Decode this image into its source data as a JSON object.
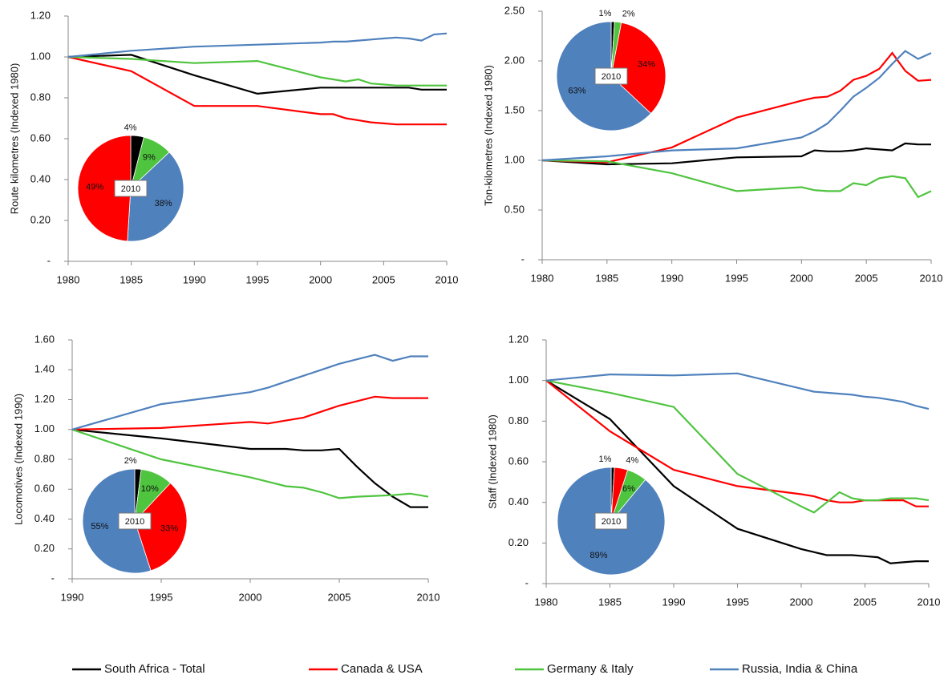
{
  "legend": {
    "names": [
      "South Africa - Total",
      "Canada & USA",
      "Germany & Italy",
      "Russia, India & China"
    ],
    "colors": [
      "#000000",
      "#ff0000",
      "#4fc43f",
      "#4f81bd"
    ]
  },
  "chart_data": [
    {
      "type": "line",
      "y_label": "Route kilometres (Indexed 1980)",
      "x": [
        1980,
        1985,
        1990,
        1995,
        2000,
        2001,
        2002,
        2003,
        2004,
        2005,
        2006,
        2007,
        2008,
        2009,
        2010
      ],
      "xlim": [
        1980,
        2010
      ],
      "xticks": [
        1980,
        1985,
        1990,
        1995,
        2000,
        2005,
        2010
      ],
      "ylim": [
        0,
        1.2
      ],
      "yticks": [
        {
          "value": 0,
          "label": "-"
        },
        {
          "value": 0.2,
          "label": "0.20"
        },
        {
          "value": 0.4,
          "label": "0.40"
        },
        {
          "value": 0.6,
          "label": "0.60"
        },
        {
          "value": 0.8,
          "label": "0.80"
        },
        {
          "value": 1,
          "label": "1.00"
        },
        {
          "value": 1.2,
          "label": "1.20"
        }
      ],
      "series": [
        {
          "values": [
            1.0,
            1.01,
            0.91,
            0.82,
            0.85,
            0.85,
            0.85,
            0.85,
            0.85,
            0.85,
            0.85,
            0.85,
            0.84,
            0.84,
            0.84
          ]
        },
        {
          "values": [
            1.0,
            0.93,
            0.76,
            0.76,
            0.72,
            0.72,
            0.7,
            0.69,
            0.68,
            0.675,
            0.67,
            0.67,
            0.67,
            0.67,
            0.67
          ]
        },
        {
          "values": [
            1.0,
            0.99,
            0.97,
            0.98,
            0.9,
            0.89,
            0.88,
            0.89,
            0.87,
            0.865,
            0.86,
            0.86,
            0.86,
            0.86,
            0.86
          ]
        },
        {
          "values": [
            1.0,
            1.03,
            1.05,
            1.06,
            1.07,
            1.075,
            1.075,
            1.08,
            1.085,
            1.09,
            1.095,
            1.09,
            1.08,
            1.11,
            1.115
          ]
        }
      ],
      "inset_pie": {
        "label": "2010",
        "values": [
          4,
          9,
          38,
          49
        ],
        "value_labels": [
          "4%",
          "9%",
          "38%",
          "49%"
        ],
        "colors": [
          "#000000",
          "#4fc43f",
          "#4f81bd",
          "#ff0000"
        ]
      }
    },
    {
      "type": "line",
      "y_label": "Ton-kilometres (Indexed 1980)",
      "x": [
        1980,
        1985,
        1990,
        1995,
        2000,
        2001,
        2002,
        2003,
        2004,
        2005,
        2006,
        2007,
        2008,
        2009,
        2010
      ],
      "xlim": [
        1980,
        2010
      ],
      "xticks": [
        1980,
        1985,
        1990,
        1995,
        2000,
        2005,
        2010
      ],
      "ylim": [
        0,
        2.5
      ],
      "yticks": [
        {
          "value": 0,
          "label": "-"
        },
        {
          "value": 0.5,
          "label": "0.50"
        },
        {
          "value": 1,
          "label": "1.00"
        },
        {
          "value": 1.5,
          "label": "1.50"
        },
        {
          "value": 2,
          "label": "2.00"
        },
        {
          "value": 2.5,
          "label": "2.50"
        }
      ],
      "series": [
        {
          "values": [
            1.0,
            0.96,
            0.97,
            1.03,
            1.04,
            1.1,
            1.09,
            1.09,
            1.1,
            1.12,
            1.11,
            1.1,
            1.17,
            1.16,
            1.16
          ]
        },
        {
          "values": [
            1.0,
            0.98,
            1.13,
            1.43,
            1.6,
            1.63,
            1.64,
            1.7,
            1.81,
            1.85,
            1.92,
            2.08,
            1.9,
            1.8,
            1.81
          ]
        },
        {
          "values": [
            1.0,
            0.99,
            0.87,
            0.69,
            0.73,
            0.7,
            0.69,
            0.69,
            0.77,
            0.75,
            0.82,
            0.84,
            0.82,
            0.63,
            0.69
          ]
        },
        {
          "values": [
            1.0,
            1.04,
            1.1,
            1.12,
            1.23,
            1.29,
            1.37,
            1.5,
            1.64,
            1.73,
            1.83,
            1.97,
            2.1,
            2.02,
            2.08
          ]
        }
      ],
      "inset_pie": {
        "label": "2010",
        "values": [
          1,
          2,
          34,
          63
        ],
        "value_labels": [
          "1%",
          "2%",
          "34%",
          "63%"
        ],
        "colors": [
          "#000000",
          "#4fc43f",
          "#ff0000",
          "#4f81bd"
        ]
      }
    },
    {
      "type": "line",
      "y_label": "Locomotives (Indexed 1990)",
      "x": [
        1990,
        1995,
        2000,
        2001,
        2002,
        2003,
        2004,
        2005,
        2006,
        2007,
        2008,
        2009,
        2010
      ],
      "xlim": [
        1990,
        2010
      ],
      "xticks": [
        1990,
        1995,
        2000,
        2005,
        2010
      ],
      "ylim": [
        0,
        1.6
      ],
      "yticks": [
        {
          "value": 0,
          "label": "-"
        },
        {
          "value": 0.2,
          "label": "0.20"
        },
        {
          "value": 0.4,
          "label": "0.40"
        },
        {
          "value": 0.6,
          "label": "0.60"
        },
        {
          "value": 0.8,
          "label": "0.80"
        },
        {
          "value": 1,
          "label": "1.00"
        },
        {
          "value": 1.2,
          "label": "1.20"
        },
        {
          "value": 1.4,
          "label": "1.40"
        },
        {
          "value": 1.6,
          "label": "1.60"
        }
      ],
      "series": [
        {
          "values": [
            1.0,
            0.94,
            0.87,
            0.87,
            0.87,
            0.86,
            0.86,
            0.87,
            0.75,
            0.64,
            0.55,
            0.48,
            0.48
          ]
        },
        {
          "values": [
            1.0,
            1.01,
            1.05,
            1.04,
            1.06,
            1.08,
            1.12,
            1.16,
            1.19,
            1.22,
            1.21,
            1.21,
            1.21
          ]
        },
        {
          "values": [
            1.0,
            0.8,
            0.68,
            0.65,
            0.62,
            0.61,
            0.58,
            0.54,
            0.55,
            0.555,
            0.56,
            0.57,
            0.55
          ]
        },
        {
          "values": [
            1.0,
            1.17,
            1.25,
            1.28,
            1.32,
            1.36,
            1.4,
            1.44,
            1.47,
            1.5,
            1.46,
            1.49,
            1.49
          ]
        }
      ],
      "inset_pie": {
        "label": "2010",
        "values": [
          2,
          10,
          33,
          55
        ],
        "value_labels": [
          "2%",
          "10%",
          "33%",
          "55%"
        ],
        "colors": [
          "#000000",
          "#4fc43f",
          "#ff0000",
          "#4f81bd"
        ]
      }
    },
    {
      "type": "line",
      "y_label": "Staff (Indexed 1980)",
      "x": [
        1980,
        1985,
        1990,
        1995,
        2000,
        2001,
        2002,
        2003,
        2004,
        2005,
        2006,
        2007,
        2008,
        2009,
        2010
      ],
      "xlim": [
        1980,
        2010
      ],
      "xticks": [
        1980,
        1985,
        1990,
        1995,
        2000,
        2005,
        2010
      ],
      "ylim": [
        0,
        1.2
      ],
      "yticks": [
        {
          "value": 0,
          "label": "-"
        },
        {
          "value": 0.2,
          "label": "0.20"
        },
        {
          "value": 0.4,
          "label": "0.40"
        },
        {
          "value": 0.6,
          "label": "0.60"
        },
        {
          "value": 0.8,
          "label": "0.80"
        },
        {
          "value": 1,
          "label": "1.00"
        },
        {
          "value": 1.2,
          "label": "1.20"
        }
      ],
      "series": [
        {
          "values": [
            1.0,
            0.81,
            0.48,
            0.27,
            0.17,
            0.155,
            0.14,
            0.14,
            0.14,
            0.135,
            0.13,
            0.1,
            0.105,
            0.11,
            0.11
          ]
        },
        {
          "values": [
            1.0,
            0.75,
            0.56,
            0.48,
            0.44,
            0.43,
            0.41,
            0.4,
            0.4,
            0.41,
            0.41,
            0.41,
            0.41,
            0.38,
            0.38
          ]
        },
        {
          "values": [
            1.0,
            0.94,
            0.87,
            0.54,
            0.38,
            0.35,
            0.4,
            0.45,
            0.42,
            0.41,
            0.41,
            0.42,
            0.42,
            0.42,
            0.41
          ]
        },
        {
          "values": [
            1.0,
            1.03,
            1.025,
            1.035,
            0.96,
            0.945,
            0.94,
            0.935,
            0.93,
            0.92,
            0.915,
            0.905,
            0.895,
            0.875,
            0.86
          ]
        }
      ],
      "inset_pie": {
        "label": "2010",
        "values": [
          1,
          4,
          6,
          89
        ],
        "value_labels": [
          "1%",
          "4%",
          "6%",
          "89%"
        ],
        "colors": [
          "#000000",
          "#ff0000",
          "#4fc43f",
          "#4f81bd"
        ]
      }
    }
  ]
}
